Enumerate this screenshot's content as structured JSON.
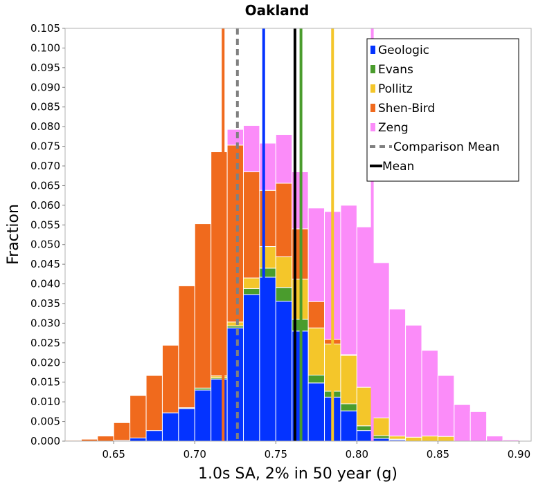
{
  "chart_data": {
    "type": "bar",
    "stacked": true,
    "title": "Oakland",
    "xlabel": "1.0s SA, 2% in 50 year (g)",
    "ylabel": "Fraction",
    "xlim": [
      0.62,
      0.9075
    ],
    "ylim": [
      0,
      0.105
    ],
    "bin_width": 0.01,
    "x_ticks": [
      {
        "value": 0.65,
        "label": "0.65"
      },
      {
        "value": 0.7,
        "label": "0.70"
      },
      {
        "value": 0.75,
        "label": "0.75"
      },
      {
        "value": 0.8,
        "label": "0.80"
      },
      {
        "value": 0.85,
        "label": "0.85"
      },
      {
        "value": 0.9,
        "label": "0.90"
      }
    ],
    "y_ticks": [
      {
        "value": 0.0,
        "label": "0.000"
      },
      {
        "value": 0.005,
        "label": "0.005"
      },
      {
        "value": 0.01,
        "label": "0.010"
      },
      {
        "value": 0.015,
        "label": "0.015"
      },
      {
        "value": 0.02,
        "label": "0.020"
      },
      {
        "value": 0.025,
        "label": "0.025"
      },
      {
        "value": 0.03,
        "label": "0.030"
      },
      {
        "value": 0.035,
        "label": "0.035"
      },
      {
        "value": 0.04,
        "label": "0.040"
      },
      {
        "value": 0.045,
        "label": "0.045"
      },
      {
        "value": 0.05,
        "label": "0.050"
      },
      {
        "value": 0.055,
        "label": "0.055"
      },
      {
        "value": 0.06,
        "label": "0.060"
      },
      {
        "value": 0.065,
        "label": "0.065"
      },
      {
        "value": 0.07,
        "label": "0.070"
      },
      {
        "value": 0.075,
        "label": "0.075"
      },
      {
        "value": 0.08,
        "label": "0.080"
      },
      {
        "value": 0.085,
        "label": "0.085"
      },
      {
        "value": 0.09,
        "label": "0.090"
      },
      {
        "value": 0.095,
        "label": "0.095"
      },
      {
        "value": 0.1,
        "label": "0.100"
      },
      {
        "value": 0.105,
        "label": "0.105"
      }
    ],
    "bins": [
      0.625,
      0.635,
      0.645,
      0.655,
      0.665,
      0.675,
      0.685,
      0.695,
      0.705,
      0.715,
      0.725,
      0.735,
      0.745,
      0.755,
      0.765,
      0.775,
      0.785,
      0.795,
      0.805,
      0.815,
      0.825,
      0.835,
      0.845,
      0.855,
      0.865,
      0.875,
      0.885,
      0.895
    ],
    "series": [
      {
        "name": "Geologic",
        "color": "#0433ff",
        "values": [
          0,
          0,
          0,
          0.0002,
          0.0008,
          0.0027,
          0.0072,
          0.0083,
          0.013,
          0.0158,
          0.0288,
          0.0373,
          0.0417,
          0.0356,
          0.028,
          0.0148,
          0.0112,
          0.0077,
          0.0027,
          0.0007,
          0.0003,
          0,
          0,
          0,
          0,
          0,
          0,
          0
        ]
      },
      {
        "name": "Evans",
        "color": "#4a9c2d",
        "values": [
          0,
          0,
          0,
          0,
          0,
          0,
          0,
          0.0002,
          0.0005,
          0.0003,
          0.0005,
          0.0015,
          0.0023,
          0.0035,
          0.003,
          0.002,
          0.0015,
          0.0018,
          0.0012,
          0.0007,
          0.0002,
          0,
          0,
          0,
          0,
          0,
          0,
          0
        ]
      },
      {
        "name": "Pollitz",
        "color": "#f4c62a",
        "values": [
          0,
          0,
          0,
          0,
          0,
          0,
          0,
          0,
          0,
          0.0005,
          0.001,
          0.0027,
          0.0055,
          0.0078,
          0.0102,
          0.012,
          0.012,
          0.0123,
          0.0098,
          0.0045,
          0.0008,
          0.001,
          0.0013,
          0.0012,
          0,
          0,
          0,
          0
        ]
      },
      {
        "name": "Shen-Bird",
        "color": "#f06a1d",
        "values": [
          0.0002,
          0.0005,
          0.0013,
          0.0045,
          0.0108,
          0.014,
          0.0172,
          0.031,
          0.0418,
          0.057,
          0.045,
          0.027,
          0.0143,
          0.0187,
          0.0128,
          0.0067,
          0.0012,
          0.0002,
          0,
          0,
          0,
          0,
          0,
          0,
          0,
          0,
          0,
          0
        ]
      },
      {
        "name": "Zeng",
        "color": "#fb8cf9",
        "values": [
          0,
          0,
          0,
          0,
          0,
          0,
          0,
          0,
          0,
          0,
          0.004,
          0.0118,
          0.012,
          0.0124,
          0.0145,
          0.0238,
          0.0325,
          0.038,
          0.0408,
          0.0395,
          0.0323,
          0.0285,
          0.0218,
          0.0155,
          0.0093,
          0.0075,
          0.0013,
          0.0003
        ]
      }
    ],
    "vertical_lines": [
      {
        "name": "Geologic",
        "x": 0.7425,
        "color": "#0433ff",
        "style": "solid"
      },
      {
        "name": "Evans",
        "x": 0.7655,
        "color": "#4a9c2d",
        "style": "solid"
      },
      {
        "name": "Pollitz",
        "x": 0.785,
        "color": "#f4c62a",
        "style": "solid"
      },
      {
        "name": "Shen-Bird",
        "x": 0.7175,
        "color": "#f06a1d",
        "style": "solid"
      },
      {
        "name": "Zeng",
        "x": 0.8095,
        "color": "#fb8cf9",
        "style": "solid"
      },
      {
        "name": "Comparison Mean",
        "x": 0.7263,
        "color": "#808080",
        "style": "dashed"
      },
      {
        "name": "Mean",
        "x": 0.7618,
        "color": "#000000",
        "style": "solid"
      }
    ],
    "legend": {
      "placement": "top-right",
      "entries": [
        {
          "label": "Geologic",
          "color": "#0433ff",
          "kind": "box"
        },
        {
          "label": "Evans",
          "color": "#4a9c2d",
          "kind": "box"
        },
        {
          "label": "Pollitz",
          "color": "#f4c62a",
          "kind": "box"
        },
        {
          "label": "Shen-Bird",
          "color": "#f06a1d",
          "kind": "box"
        },
        {
          "label": "Zeng",
          "color": "#fb8cf9",
          "kind": "box"
        },
        {
          "label": "Comparison Mean",
          "color": "#808080",
          "kind": "dash"
        },
        {
          "label": "Mean",
          "color": "#000000",
          "kind": "line"
        }
      ]
    },
    "grid": false
  }
}
